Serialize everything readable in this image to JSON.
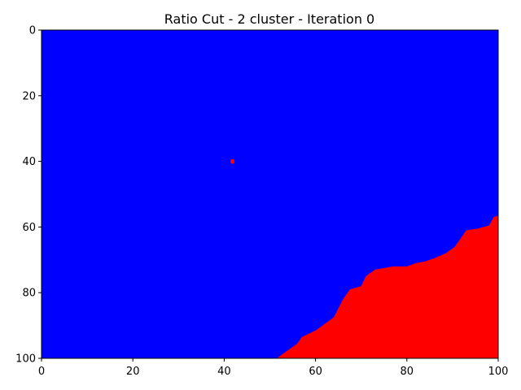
{
  "chart_data": {
    "type": "heatmap",
    "title": "Ratio Cut - 2 cluster - Iteration 0",
    "xlabel": "",
    "ylabel": "",
    "xlim": [
      0,
      100
    ],
    "ylim": [
      100,
      0
    ],
    "x_ticks": [
      "0",
      "20",
      "40",
      "60",
      "80",
      "100"
    ],
    "y_ticks": [
      "0",
      "20",
      "40",
      "60",
      "80",
      "100"
    ],
    "grid": false,
    "colors": {
      "cluster_0": "#0000ff",
      "cluster_1": "#ff0000"
    },
    "clusters": [
      {
        "id": 0,
        "color": "#0000ff",
        "region": "upper-left"
      },
      {
        "id": 1,
        "color": "#ff0000",
        "region": "lower-right"
      }
    ],
    "boundary": [
      {
        "x": 51.5,
        "y": 100
      },
      {
        "x": 53,
        "y": 98.5
      },
      {
        "x": 56,
        "y": 95.5
      },
      {
        "x": 57,
        "y": 93.5
      },
      {
        "x": 60,
        "y": 91.5
      },
      {
        "x": 62,
        "y": 89.5
      },
      {
        "x": 64,
        "y": 87.5
      },
      {
        "x": 66,
        "y": 82
      },
      {
        "x": 67.5,
        "y": 79
      },
      {
        "x": 70,
        "y": 78
      },
      {
        "x": 71,
        "y": 75
      },
      {
        "x": 73,
        "y": 73
      },
      {
        "x": 75,
        "y": 72.5
      },
      {
        "x": 77,
        "y": 72
      },
      {
        "x": 80,
        "y": 72
      },
      {
        "x": 82,
        "y": 71
      },
      {
        "x": 84,
        "y": 70.5
      },
      {
        "x": 86,
        "y": 69.5
      },
      {
        "x": 88.5,
        "y": 68
      },
      {
        "x": 90.5,
        "y": 66
      },
      {
        "x": 92,
        "y": 63
      },
      {
        "x": 93,
        "y": 61
      },
      {
        "x": 95.5,
        "y": 60.5
      },
      {
        "x": 98,
        "y": 59.5
      },
      {
        "x": 99,
        "y": 57
      },
      {
        "x": 100,
        "y": 56.5
      }
    ],
    "isolated_points": [
      {
        "x": 41.8,
        "y": 40,
        "cluster": 1
      }
    ]
  }
}
